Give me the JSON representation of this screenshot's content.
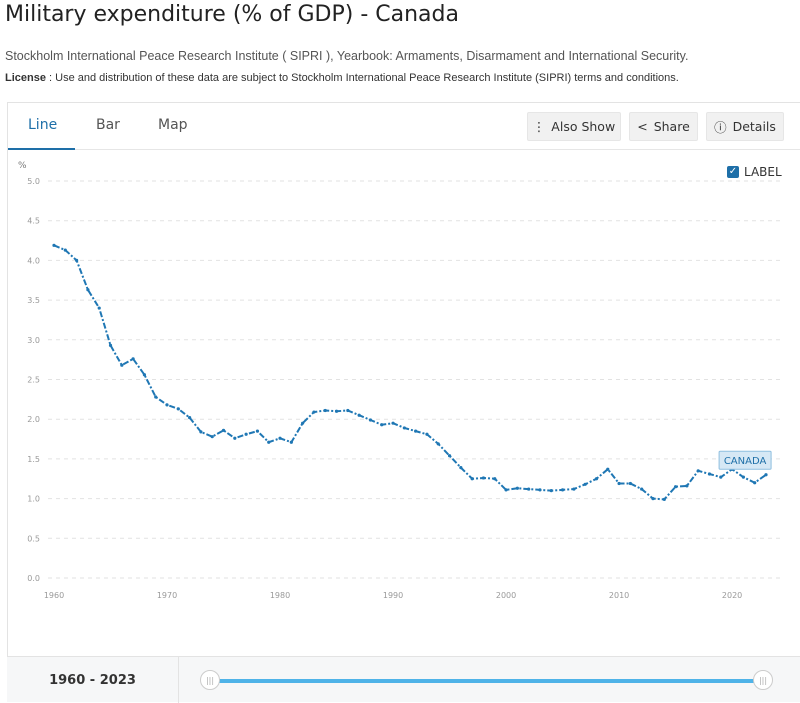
{
  "title": "Military expenditure (% of GDP) - Canada",
  "source": "Stockholm International Peace Research Institute ( SIPRI ), Yearbook: Armaments, Disarmament and International Security.",
  "license_label": "License",
  "license_text": " : Use and distribution of these data are subject to Stockholm International Peace Research Institute (SIPRI) terms and conditions.",
  "tabs": [
    "Line",
    "Bar",
    "Map"
  ],
  "buttons": {
    "also_show": "Also Show",
    "share": "Share",
    "details": "Details"
  },
  "label_toggle": "LABEL",
  "footer": {
    "range": "1960 - 2023",
    "handle_glyph": "|||"
  },
  "colors": {
    "line": "#1f77b4",
    "accent": "#1e6fa8",
    "slider": "#4fb3e8"
  },
  "chart_data": {
    "type": "line",
    "title": "Military expenditure (% of GDP) - Canada",
    "ylabel": "%",
    "ylim": [
      0,
      5
    ],
    "xlim": [
      1960,
      2023
    ],
    "yticks": [
      "0.0",
      "0.5",
      "1.0",
      "1.5",
      "2.0",
      "2.5",
      "3.0",
      "3.5",
      "4.0",
      "4.5",
      "5.0"
    ],
    "xticks": [
      "1960",
      "1970",
      "1980",
      "1990",
      "2000",
      "2010",
      "2020"
    ],
    "grid": true,
    "series": [
      {
        "name": "CANADA",
        "x": [
          1960,
          1961,
          1962,
          1963,
          1964,
          1965,
          1966,
          1967,
          1968,
          1969,
          1970,
          1971,
          1972,
          1973,
          1974,
          1975,
          1976,
          1977,
          1978,
          1979,
          1980,
          1981,
          1982,
          1983,
          1984,
          1985,
          1986,
          1987,
          1988,
          1989,
          1990,
          1991,
          1992,
          1993,
          1994,
          1995,
          1996,
          1997,
          1998,
          1999,
          2000,
          2001,
          2002,
          2003,
          2004,
          2005,
          2006,
          2007,
          2008,
          2009,
          2010,
          2011,
          2012,
          2013,
          2014,
          2015,
          2016,
          2017,
          2018,
          2019,
          2020,
          2021,
          2022,
          2023
        ],
        "values": [
          4.19,
          4.13,
          4.0,
          3.63,
          3.4,
          2.93,
          2.68,
          2.76,
          2.56,
          2.28,
          2.18,
          2.13,
          2.02,
          1.84,
          1.78,
          1.86,
          1.76,
          1.81,
          1.85,
          1.71,
          1.76,
          1.71,
          1.95,
          2.09,
          2.11,
          2.1,
          2.11,
          2.05,
          1.99,
          1.93,
          1.95,
          1.89,
          1.85,
          1.81,
          1.69,
          1.54,
          1.39,
          1.25,
          1.26,
          1.25,
          1.11,
          1.13,
          1.12,
          1.11,
          1.1,
          1.11,
          1.12,
          1.18,
          1.25,
          1.37,
          1.19,
          1.19,
          1.12,
          1.0,
          0.99,
          1.15,
          1.16,
          1.35,
          1.31,
          1.27,
          1.37,
          1.27,
          1.2,
          1.3
        ]
      }
    ]
  }
}
